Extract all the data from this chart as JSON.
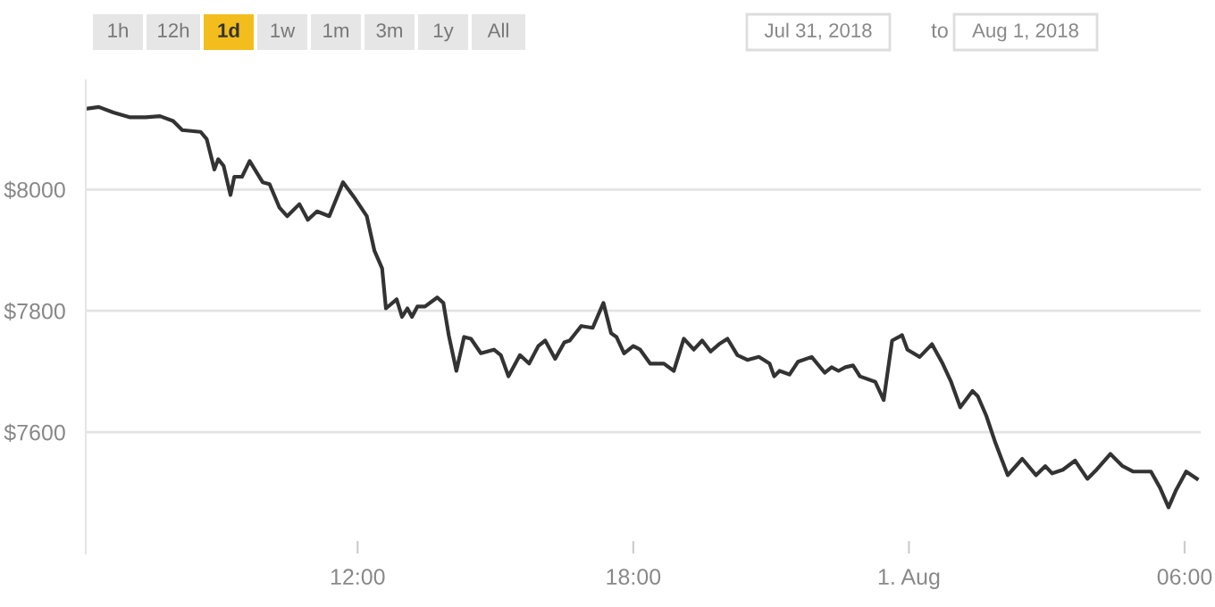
{
  "chart_data": {
    "type": "line",
    "annotations": [
      "1h",
      "12h",
      "1d",
      "1w",
      "1m",
      "3m",
      "1y",
      "All",
      "Jul 31, 2018",
      "to",
      "Aug 1, 2018"
    ],
    "x": [
      "2018-07-31T06:05",
      "2018-07-31T06:22",
      "2018-07-31T06:41",
      "2018-07-31T07:03",
      "2018-07-31T07:23",
      "2018-07-31T07:42",
      "2018-07-31T07:59",
      "2018-07-31T08:11",
      "2018-07-31T08:35",
      "2018-07-31T08:43",
      "2018-07-31T08:53",
      "2018-07-31T08:58",
      "2018-07-31T09:05",
      "2018-07-31T09:14",
      "2018-07-31T09:19",
      "2018-07-31T09:29",
      "2018-07-31T09:39",
      "2018-07-31T09:56",
      "2018-07-31T10:05",
      "2018-07-31T10:18",
      "2018-07-31T10:28",
      "2018-07-31T10:44",
      "2018-07-31T10:55",
      "2018-07-31T11:07",
      "2018-07-31T11:23",
      "2018-07-31T11:41",
      "2018-07-31T11:55",
      "2018-07-31T12:12",
      "2018-07-31T12:22",
      "2018-07-31T12:32",
      "2018-07-31T12:37",
      "2018-07-31T12:51",
      "2018-07-31T12:58",
      "2018-07-31T13:05",
      "2018-07-31T13:11",
      "2018-07-31T13:18",
      "2018-07-31T13:28",
      "2018-07-31T13:44",
      "2018-07-31T13:52",
      "2018-07-31T13:59",
      "2018-07-31T14:09",
      "2018-07-31T14:19",
      "2018-07-31T14:28",
      "2018-07-31T14:41",
      "2018-07-31T14:58",
      "2018-07-31T15:07",
      "2018-07-31T15:17",
      "2018-07-31T15:32",
      "2018-07-31T15:44",
      "2018-07-31T15:56",
      "2018-07-31T16:05",
      "2018-07-31T16:18",
      "2018-07-31T16:30",
      "2018-07-31T16:37",
      "2018-07-31T16:52",
      "2018-07-31T17:07",
      "2018-07-31T17:21",
      "2018-07-31T17:31",
      "2018-07-31T17:38",
      "2018-07-31T17:48",
      "2018-07-31T18:00",
      "2018-07-31T18:09",
      "2018-07-31T18:22",
      "2018-07-31T18:40",
      "2018-07-31T18:53",
      "2018-07-31T19:06",
      "2018-07-31T19:19",
      "2018-07-31T19:30",
      "2018-07-31T19:41",
      "2018-07-31T19:52",
      "2018-07-31T20:03",
      "2018-07-31T20:16",
      "2018-07-31T20:29",
      "2018-07-31T20:44",
      "2018-07-31T20:58",
      "2018-07-31T21:04",
      "2018-07-31T21:11",
      "2018-07-31T21:24",
      "2018-07-31T21:35",
      "2018-07-31T21:53",
      "2018-07-31T22:10",
      "2018-07-31T22:19",
      "2018-07-31T22:28",
      "2018-07-31T22:37",
      "2018-07-31T22:47",
      "2018-07-31T22:56",
      "2018-07-31T23:16",
      "2018-07-31T23:27",
      "2018-07-31T23:38",
      "2018-07-31T23:47",
      "2018-07-31T23:51",
      "2018-07-31T23:58",
      "2018-08-01T00:14",
      "2018-08-01T00:30",
      "2018-08-01T00:44",
      "2018-08-01T00:55",
      "2018-08-01T01:07",
      "2018-08-01T01:23",
      "2018-08-01T01:30",
      "2018-08-01T01:41",
      "2018-08-01T01:53",
      "2018-08-01T02:09",
      "2018-08-01T02:28",
      "2018-08-01T02:46",
      "2018-08-01T02:58",
      "2018-08-01T03:07",
      "2018-08-01T03:21",
      "2018-08-01T03:37",
      "2018-08-01T03:53",
      "2018-08-01T04:05",
      "2018-08-01T04:23",
      "2018-08-01T04:39",
      "2018-08-01T04:53",
      "2018-08-01T05:16",
      "2018-08-01T05:28",
      "2018-08-01T05:39",
      "2018-08-01T05:49",
      "2018-08-01T06:02",
      "2018-08-01T06:16"
    ],
    "series": [
      {
        "color": "#333333",
        "values": [
          8133,
          8136,
          8127,
          8119,
          8119,
          8121,
          8113,
          8098,
          8095,
          8083,
          8033,
          8050,
          8039,
          7991,
          8021,
          8021,
          8047,
          8012,
          8009,
          7970,
          7956,
          7976,
          7950,
          7964,
          7956,
          8012,
          7988,
          7956,
          7899,
          7870,
          7804,
          7819,
          7790,
          7804,
          7790,
          7807,
          7807,
          7822,
          7813,
          7760,
          7701,
          7757,
          7754,
          7730,
          7736,
          7727,
          7692,
          7727,
          7713,
          7742,
          7751,
          7721,
          7748,
          7751,
          7775,
          7772,
          7813,
          7763,
          7757,
          7730,
          7742,
          7736,
          7713,
          7713,
          7701,
          7754,
          7736,
          7751,
          7733,
          7745,
          7754,
          7727,
          7719,
          7724,
          7713,
          7692,
          7701,
          7695,
          7716,
          7724,
          7698,
          7707,
          7701,
          7707,
          7710,
          7692,
          7683,
          7653,
          7751,
          7757,
          7760,
          7736,
          7724,
          7745,
          7713,
          7683,
          7641,
          7668,
          7659,
          7627,
          7582,
          7529,
          7556,
          7529,
          7544,
          7532,
          7538,
          7553,
          7523,
          7538,
          7564,
          7544,
          7535,
          7535,
          7508,
          7476,
          7505,
          7535,
          7523
        ]
      }
    ],
    "xlim": [
      "2018-07-31T06:05",
      "2018-08-01T06:21"
    ],
    "xticks": [
      {
        "value": "2018-07-31T12:00",
        "label": "12:00"
      },
      {
        "value": "2018-07-31T18:00",
        "label": "18:00"
      },
      {
        "value": "2018-08-01T00:00",
        "label": "1. Aug"
      },
      {
        "value": "2018-08-01T06:00",
        "label": "06:00"
      }
    ],
    "ylim": [
      7400,
      8180
    ],
    "yticks": [
      {
        "value": 7600,
        "label": "$7600"
      },
      {
        "value": 7800,
        "label": "$7800"
      },
      {
        "value": 8000,
        "label": "$8000"
      }
    ],
    "grid": "y",
    "marker": "none",
    "line_style": "solid"
  }
}
